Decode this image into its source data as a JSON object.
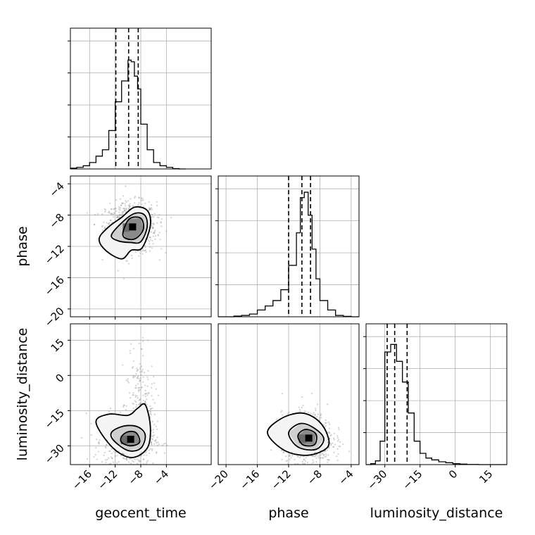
{
  "chart_data": {
    "type": "corner",
    "parameters": [
      "geocent_time",
      "phase",
      "luminosity_distance"
    ],
    "diagonal": [
      {
        "parameter": "geocent_time",
        "range": [
          -19,
          3
        ],
        "bin_edges": [
          -19,
          -18,
          -17,
          -16,
          -15,
          -14,
          -13,
          -12,
          -11,
          -10,
          -9.5,
          -9,
          -8.5,
          -8,
          -7,
          -6,
          -5,
          -4,
          -3,
          -2,
          -1
        ],
        "counts": [
          0.5,
          1,
          2,
          4,
          8,
          12,
          24,
          42,
          55,
          68,
          67,
          58,
          50,
          28,
          12,
          4,
          2,
          1,
          0.2,
          0
        ],
        "ymax": 88,
        "quantiles": [
          -11.9,
          -9.9,
          -8.4
        ]
      },
      {
        "parameter": "phase",
        "range": [
          -21,
          -3
        ],
        "bin_edges": [
          -21,
          -20,
          -19,
          -18,
          -17,
          -16,
          -15,
          -14,
          -13,
          -12,
          -11,
          -10.5,
          -10,
          -9.5,
          -9,
          -8.5,
          -8,
          -7,
          -6,
          -5,
          -4,
          -3
        ],
        "counts": [
          0,
          0,
          0.5,
          1,
          2,
          5,
          8,
          12,
          20,
          38,
          62,
          88,
          92,
          75,
          50,
          28,
          12,
          5,
          1,
          0.3,
          0
        ],
        "ymax": 104,
        "quantiles": [
          -12.0,
          -10.3,
          -9.2
        ]
      },
      {
        "parameter": "luminosity_distance",
        "range": [
          -38,
          22
        ],
        "bin_edges": [
          -38,
          -36,
          -34,
          -32,
          -30,
          -27.5,
          -25,
          -22.5,
          -20,
          -17.5,
          -15,
          -12.5,
          -10,
          -7,
          -4,
          -1,
          2,
          5,
          10,
          16,
          22
        ],
        "counts": [
          0,
          1,
          4,
          25,
          120,
          128,
          110,
          88,
          55,
          25,
          12,
          7,
          5,
          3,
          2,
          1,
          0.5,
          0.2,
          0,
          0
        ],
        "ymax": 150,
        "quantiles": [
          -29.0,
          -25.8,
          -20.5
        ]
      }
    ],
    "pairs": [
      {
        "x_parameter": "geocent_time",
        "y_parameter": "phase",
        "x_range": [
          -19,
          3
        ],
        "y_range": [
          -21,
          -3
        ],
        "peak": [
          -9.5,
          -9.6
        ],
        "contours": [
          [
            [
              -14.5,
              -11.0
            ],
            [
              -13.0,
              -9.5
            ],
            [
              -11.0,
              -8.3
            ],
            [
              -9.0,
              -7.0
            ],
            [
              -7.0,
              -7.4
            ],
            [
              -6.5,
              -9.3
            ],
            [
              -7.8,
              -12.2
            ],
            [
              -9.5,
              -12.5
            ],
            [
              -11.0,
              -13.6
            ],
            [
              -13.5,
              -12.5
            ]
          ],
          [
            [
              -12.6,
              -10.6
            ],
            [
              -11.0,
              -9.0
            ],
            [
              -9.0,
              -7.8
            ],
            [
              -7.4,
              -8.0
            ],
            [
              -7.0,
              -9.5
            ],
            [
              -8.0,
              -11.4
            ],
            [
              -9.6,
              -11.5
            ],
            [
              -11.5,
              -11.3
            ]
          ],
          [
            [
              -10.8,
              -10.3
            ],
            [
              -9.8,
              -8.5
            ],
            [
              -8.0,
              -8.4
            ],
            [
              -7.6,
              -9.8
            ],
            [
              -8.8,
              -11.0
            ],
            [
              -10.3,
              -11.0
            ]
          ]
        ],
        "xticks": [
          -16,
          -12,
          -8,
          -4
        ],
        "yticks": [
          -4,
          -8,
          -12,
          -16,
          -20
        ]
      },
      {
        "x_parameter": "geocent_time",
        "y_parameter": "luminosity_distance",
        "x_range": [
          -19,
          3
        ],
        "y_range": [
          -38,
          22
        ],
        "peak": [
          -9.8,
          -27.5
        ],
        "contours": [
          [
            [
              -15.0,
              -20.0
            ],
            [
              -13.0,
              -16.5
            ],
            [
              -10.0,
              -17.0
            ],
            [
              -8.5,
              -14.0
            ],
            [
              -7.3,
              -12.5
            ],
            [
              -6.5,
              -22.0
            ],
            [
              -7.0,
              -31.0
            ],
            [
              -9.5,
              -35.0
            ],
            [
              -12.5,
              -30.5
            ]
          ],
          [
            [
              -12.5,
              -24.0
            ],
            [
              -10.5,
              -21.5
            ],
            [
              -8.4,
              -22.0
            ],
            [
              -7.3,
              -25.5
            ],
            [
              -8.0,
              -31.0
            ],
            [
              -10.0,
              -32.0
            ],
            [
              -12.3,
              -27.5
            ]
          ],
          [
            [
              -11.0,
              -26.0
            ],
            [
              -10.0,
              -24.0
            ],
            [
              -8.7,
              -24.5
            ],
            [
              -8.2,
              -28.5
            ],
            [
              -9.6,
              -30.0
            ],
            [
              -11.0,
              -28.5
            ]
          ]
        ],
        "xticks": [
          -16,
          -12,
          -8,
          -4
        ],
        "yticks": [
          15,
          0,
          -15,
          -30
        ]
      },
      {
        "x_parameter": "phase",
        "y_parameter": "luminosity_distance",
        "x_range": [
          -21,
          -3
        ],
        "y_range": [
          -38,
          22
        ],
        "peak": [
          -9.6,
          -27.0
        ],
        "contours": [
          [
            [
              -14.7,
              -24.5
            ],
            [
              -13.0,
              -18.5
            ],
            [
              -10.5,
              -16.0
            ],
            [
              -8.5,
              -18.5
            ],
            [
              -7.2,
              -24.0
            ],
            [
              -7.0,
              -30.5
            ],
            [
              -9.5,
              -34.0
            ],
            [
              -12.5,
              -32.0
            ]
          ],
          [
            [
              -12.0,
              -24.5
            ],
            [
              -10.5,
              -20.5
            ],
            [
              -8.7,
              -22.5
            ],
            [
              -7.5,
              -27.0
            ],
            [
              -8.5,
              -31.5
            ],
            [
              -10.8,
              -30.5
            ]
          ],
          [
            [
              -10.8,
              -25.5
            ],
            [
              -9.8,
              -23.0
            ],
            [
              -8.5,
              -25.0
            ],
            [
              -8.7,
              -29.5
            ],
            [
              -10.2,
              -29.5
            ]
          ]
        ],
        "xticks": [
          -20,
          -16,
          -12,
          -8,
          -4
        ],
        "yticks": []
      }
    ],
    "tick_labels": {
      "geocent_time": [
        "−16",
        "−12",
        "−8",
        "−4"
      ],
      "phase_x": [
        "−20",
        "−16",
        "−12",
        "−8",
        "−4"
      ],
      "phase_y": [
        "−4",
        "−8",
        "−12",
        "−16",
        "−20"
      ],
      "luminosity_distance_x": [
        "−30",
        "−15",
        "0",
        "15"
      ],
      "luminosity_distance_y": [
        "15",
        "0",
        "−15",
        "−30"
      ]
    },
    "xlabels": [
      "geocent_time",
      "phase",
      "luminosity_distance"
    ],
    "ylabels": [
      "phase",
      "luminosity_distance"
    ]
  }
}
